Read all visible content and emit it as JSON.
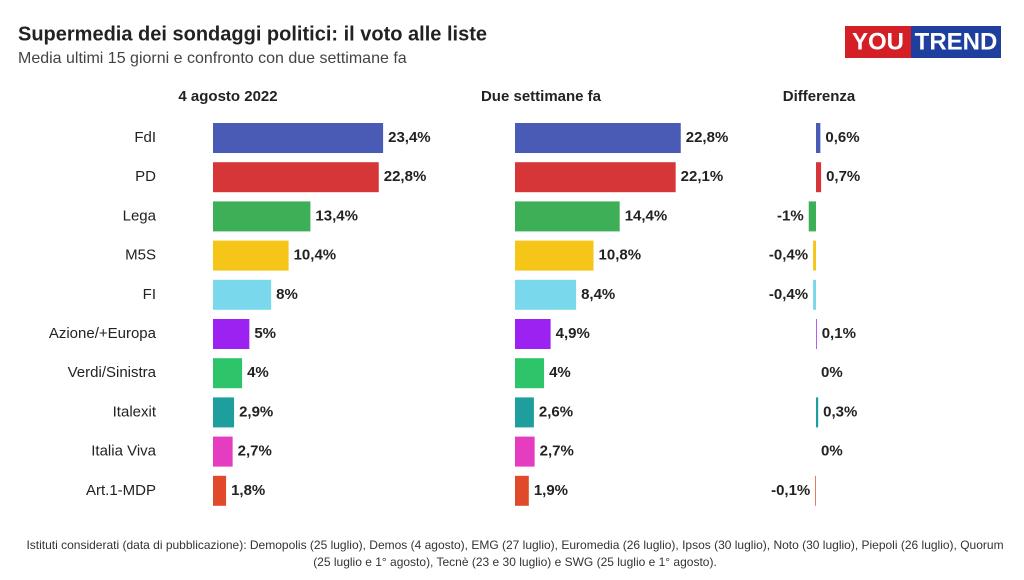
{
  "chart_data": {
    "type": "bar",
    "title": "Supermedia dei sondaggi politici: il voto alle liste",
    "subtitle": "Media ultimi 15 giorni e confronto con due settimane fa",
    "categories": [
      "FdI",
      "PD",
      "Lega",
      "M5S",
      "FI",
      "Azione/+Europa",
      "Verdi/Sinistra",
      "Italexit",
      "Italia Viva",
      "Art.1-MDP"
    ],
    "colors": [
      "#4a5bb5",
      "#d63638",
      "#3daf57",
      "#f5c518",
      "#7ad8ec",
      "#9b22f0",
      "#2ec46a",
      "#1f9e9e",
      "#e63cbf",
      "#e04a2a"
    ],
    "series": [
      {
        "name": "4 agosto 2022",
        "values": [
          23.4,
          22.8,
          13.4,
          10.4,
          8,
          5,
          4,
          2.9,
          2.7,
          1.8
        ],
        "value_labels": [
          "23,4%",
          "22,8%",
          "13,4%",
          "10,4%",
          "8%",
          "5%",
          "4%",
          "2,9%",
          "2,7%",
          "1,8%"
        ]
      },
      {
        "name": "Due settimane fa",
        "values": [
          22.8,
          22.1,
          14.4,
          10.8,
          8.4,
          4.9,
          4,
          2.6,
          2.7,
          1.9
        ],
        "value_labels": [
          "22,8%",
          "22,1%",
          "14,4%",
          "10,8%",
          "8,4%",
          "4,9%",
          "4%",
          "2,6%",
          "2,7%",
          "1,9%"
        ]
      },
      {
        "name": "Differenza",
        "values": [
          0.6,
          0.7,
          -1,
          -0.4,
          -0.4,
          0.1,
          0,
          0.3,
          0,
          -0.1
        ],
        "value_labels": [
          "0,6%",
          "0,7%",
          "-1%",
          "-0,4%",
          "-0,4%",
          "0,1%",
          "0%",
          "0,3%",
          "0%",
          "-0,1%"
        ]
      }
    ],
    "note": "Istituti considerati (data di pubblicazione): Demopolis (25 luglio), Demos (4 agosto), EMG (27 luglio), Euromedia (26 luglio), Ipsos (30 luglio), Noto (30 luglio), Piepoli (26 luglio), Quorum (25 luglio e 1° agosto), Tecnè (23 e 30 luglio) e SWG (25 luglio e 1° agosto)."
  },
  "logo": [
    "YOU",
    "TREND"
  ]
}
